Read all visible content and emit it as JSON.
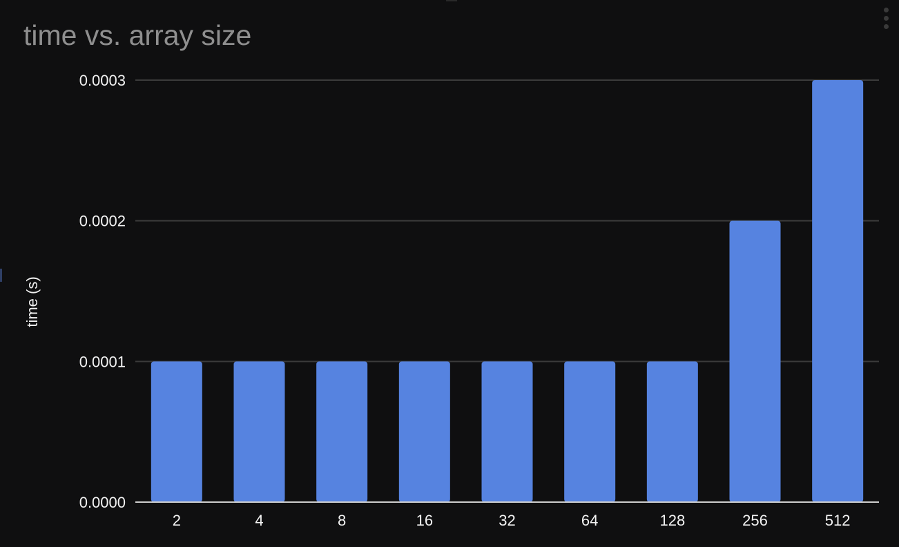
{
  "chart_data": {
    "type": "bar",
    "title": "time vs. array size",
    "xlabel": "",
    "ylabel": "time (s)",
    "categories": [
      "2",
      "4",
      "8",
      "16",
      "32",
      "64",
      "128",
      "256",
      "512"
    ],
    "values": [
      0.0001,
      0.0001,
      0.0001,
      0.0001,
      0.0001,
      0.0001,
      0.0001,
      0.0002,
      0.0003
    ],
    "ylim": [
      0,
      0.0003
    ],
    "yticks": [
      "0.0000",
      "0.0001",
      "0.0002",
      "0.0003"
    ],
    "grid": true,
    "legend": "none",
    "colors": {
      "bar": "#5683e0",
      "grid": "#3b3b3b",
      "axis": "#cfcfcf",
      "text": "#f2f2f2",
      "title": "#8f8f8f",
      "background": "#0f0f10"
    }
  }
}
